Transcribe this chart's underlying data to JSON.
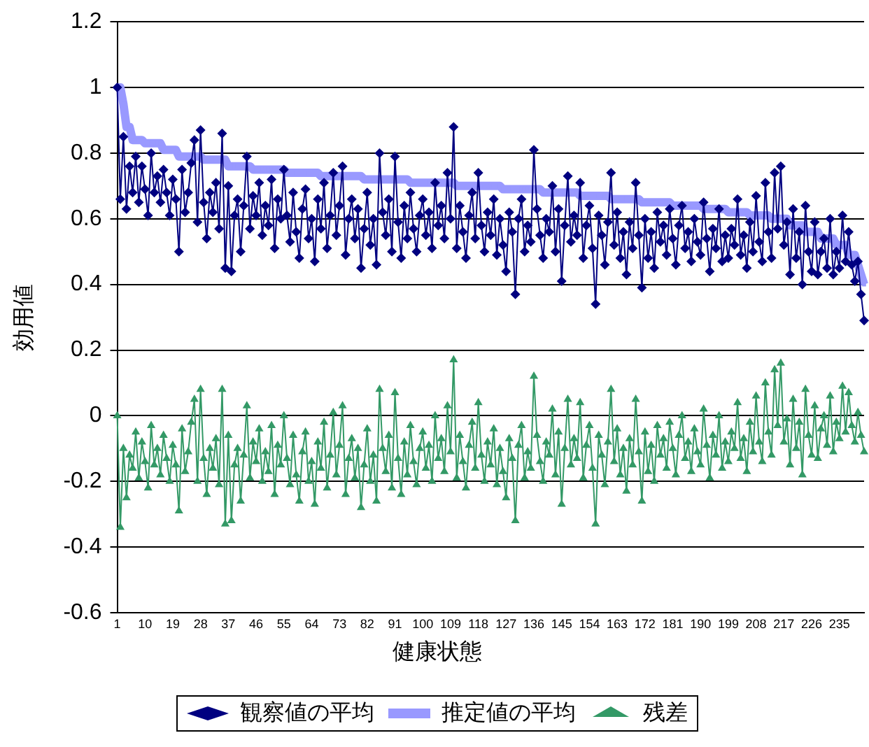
{
  "chart_data": {
    "type": "line",
    "xlabel": "健康状態",
    "ylabel": "効用値",
    "categories": [
      "1",
      null,
      null,
      null,
      null,
      null,
      null,
      null,
      null,
      "10",
      null,
      null,
      null,
      null,
      null,
      null,
      null,
      null,
      "19",
      null,
      null,
      null,
      null,
      null,
      null,
      null,
      null,
      "28",
      null,
      null,
      null,
      null,
      null,
      null,
      null,
      null,
      "37",
      null,
      null,
      null,
      null,
      null,
      null,
      null,
      null,
      "46",
      null,
      null,
      null,
      null,
      null,
      null,
      null,
      null,
      "55",
      null,
      null,
      null,
      null,
      null,
      null,
      null,
      null,
      "64",
      null,
      null,
      null,
      null,
      null,
      null,
      null,
      null,
      "73",
      null,
      null,
      null,
      null,
      null,
      null,
      null,
      null,
      "82",
      null,
      null,
      null,
      null,
      null,
      null,
      null,
      null,
      "91",
      null,
      null,
      null,
      null,
      null,
      null,
      null,
      null,
      "100",
      null,
      null,
      null,
      null,
      null,
      null,
      null,
      null,
      "109",
      null,
      null,
      null,
      null,
      null,
      null,
      null,
      null,
      "118",
      null,
      null,
      null,
      null,
      null,
      null,
      null,
      null,
      "127",
      null,
      null,
      null,
      null,
      null,
      null,
      null,
      null,
      "136",
      null,
      null,
      null,
      null,
      null,
      null,
      null,
      null,
      "145",
      null,
      null,
      null,
      null,
      null,
      null,
      null,
      null,
      "154",
      null,
      null,
      null,
      null,
      null,
      null,
      null,
      null,
      "163",
      null,
      null,
      null,
      null,
      null,
      null,
      null,
      null,
      "172",
      null,
      null,
      null,
      null,
      null,
      null,
      null,
      null,
      "181",
      null,
      null,
      null,
      null,
      null,
      null,
      null,
      null,
      "190",
      null,
      null,
      null,
      null,
      null,
      null,
      null,
      null,
      "199",
      null,
      null,
      null,
      null,
      null,
      null,
      null,
      null,
      "208",
      null,
      null,
      null,
      null,
      null,
      null,
      null,
      null,
      "217",
      null,
      null,
      null,
      null,
      null,
      null,
      null,
      null,
      "226",
      null,
      null,
      null,
      null,
      null,
      null,
      null,
      null,
      "235",
      null,
      null,
      null,
      null,
      null,
      null,
      null,
      null
    ],
    "series": [
      {
        "name": "観察値の平均",
        "color": "#000080",
        "marker": "diamond",
        "values": [
          1.0,
          0.66,
          0.85,
          0.63,
          0.76,
          0.68,
          0.79,
          0.65,
          0.76,
          0.69,
          0.61,
          0.8,
          0.68,
          0.73,
          0.65,
          0.75,
          0.68,
          0.61,
          0.72,
          0.66,
          0.5,
          0.75,
          0.62,
          0.68,
          0.77,
          0.84,
          0.59,
          0.87,
          0.65,
          0.54,
          0.68,
          0.62,
          0.71,
          0.57,
          0.86,
          0.45,
          0.7,
          0.44,
          0.61,
          0.66,
          0.5,
          0.64,
          0.79,
          0.57,
          0.67,
          0.61,
          0.71,
          0.55,
          0.64,
          0.58,
          0.72,
          0.51,
          0.66,
          0.6,
          0.75,
          0.61,
          0.53,
          0.68,
          0.56,
          0.48,
          0.63,
          0.69,
          0.54,
          0.6,
          0.47,
          0.66,
          0.57,
          0.71,
          0.51,
          0.61,
          0.74,
          0.55,
          0.64,
          0.76,
          0.49,
          0.6,
          0.66,
          0.54,
          0.63,
          0.45,
          0.57,
          0.68,
          0.52,
          0.6,
          0.46,
          0.8,
          0.62,
          0.55,
          0.66,
          0.5,
          0.79,
          0.59,
          0.48,
          0.64,
          0.54,
          0.68,
          0.57,
          0.5,
          0.61,
          0.66,
          0.55,
          0.62,
          0.51,
          0.71,
          0.58,
          0.64,
          0.54,
          0.74,
          0.6,
          0.88,
          0.51,
          0.64,
          0.56,
          0.48,
          0.61,
          0.68,
          0.54,
          0.74,
          0.58,
          0.5,
          0.62,
          0.55,
          0.66,
          0.49,
          0.6,
          0.52,
          0.44,
          0.62,
          0.56,
          0.37,
          0.6,
          0.66,
          0.5,
          0.58,
          0.53,
          0.81,
          0.63,
          0.55,
          0.48,
          0.6,
          0.56,
          0.7,
          0.5,
          0.63,
          0.41,
          0.58,
          0.73,
          0.53,
          0.61,
          0.55,
          0.71,
          0.48,
          0.58,
          0.64,
          0.51,
          0.34,
          0.61,
          0.55,
          0.46,
          0.59,
          0.74,
          0.52,
          0.62,
          0.48,
          0.56,
          0.43,
          0.59,
          0.51,
          0.71,
          0.55,
          0.39,
          0.6,
          0.48,
          0.56,
          0.45,
          0.62,
          0.53,
          0.58,
          0.49,
          0.63,
          0.54,
          0.46,
          0.58,
          0.64,
          0.51,
          0.56,
          0.47,
          0.6,
          0.53,
          0.49,
          0.65,
          0.54,
          0.44,
          0.57,
          0.51,
          0.63,
          0.47,
          0.55,
          0.48,
          0.57,
          0.52,
          0.66,
          0.49,
          0.55,
          0.45,
          0.59,
          0.5,
          0.67,
          0.53,
          0.47,
          0.71,
          0.56,
          0.48,
          0.74,
          0.57,
          0.76,
          0.52,
          0.59,
          0.43,
          0.63,
          0.48,
          0.56,
          0.4,
          0.64,
          0.5,
          0.44,
          0.59,
          0.43,
          0.5,
          0.54,
          0.45,
          0.6,
          0.43,
          0.5,
          0.45,
          0.61,
          0.47,
          0.56,
          0.46,
          0.41,
          0.47,
          0.37,
          0.29
        ]
      },
      {
        "name": "推定値の平均",
        "color": "#9999ff",
        "marker": "square",
        "values": [
          1.0,
          1.0,
          0.95,
          0.88,
          0.88,
          0.84,
          0.84,
          0.84,
          0.84,
          0.83,
          0.83,
          0.83,
          0.83,
          0.83,
          0.83,
          0.81,
          0.81,
          0.81,
          0.81,
          0.81,
          0.79,
          0.79,
          0.79,
          0.79,
          0.79,
          0.79,
          0.79,
          0.79,
          0.78,
          0.78,
          0.78,
          0.78,
          0.78,
          0.78,
          0.78,
          0.78,
          0.76,
          0.76,
          0.76,
          0.76,
          0.76,
          0.76,
          0.76,
          0.76,
          0.75,
          0.75,
          0.75,
          0.75,
          0.75,
          0.75,
          0.75,
          0.75,
          0.75,
          0.75,
          0.75,
          0.74,
          0.74,
          0.74,
          0.74,
          0.74,
          0.74,
          0.74,
          0.74,
          0.74,
          0.74,
          0.74,
          0.73,
          0.73,
          0.73,
          0.73,
          0.73,
          0.73,
          0.73,
          0.73,
          0.73,
          0.73,
          0.73,
          0.73,
          0.73,
          0.73,
          0.72,
          0.72,
          0.72,
          0.72,
          0.72,
          0.72,
          0.72,
          0.72,
          0.72,
          0.72,
          0.72,
          0.72,
          0.72,
          0.72,
          0.72,
          0.71,
          0.71,
          0.71,
          0.71,
          0.71,
          0.71,
          0.71,
          0.71,
          0.71,
          0.71,
          0.71,
          0.71,
          0.71,
          0.71,
          0.71,
          0.7,
          0.7,
          0.7,
          0.7,
          0.7,
          0.7,
          0.7,
          0.7,
          0.7,
          0.7,
          0.7,
          0.7,
          0.7,
          0.7,
          0.7,
          0.69,
          0.69,
          0.69,
          0.69,
          0.69,
          0.69,
          0.69,
          0.69,
          0.69,
          0.69,
          0.69,
          0.69,
          0.69,
          0.68,
          0.68,
          0.68,
          0.68,
          0.68,
          0.68,
          0.68,
          0.68,
          0.68,
          0.68,
          0.68,
          0.68,
          0.67,
          0.67,
          0.67,
          0.67,
          0.67,
          0.67,
          0.67,
          0.67,
          0.67,
          0.67,
          0.66,
          0.66,
          0.66,
          0.66,
          0.66,
          0.66,
          0.66,
          0.66,
          0.66,
          0.66,
          0.65,
          0.65,
          0.65,
          0.65,
          0.65,
          0.65,
          0.65,
          0.65,
          0.65,
          0.65,
          0.64,
          0.64,
          0.64,
          0.64,
          0.64,
          0.64,
          0.64,
          0.64,
          0.64,
          0.64,
          0.63,
          0.63,
          0.63,
          0.63,
          0.63,
          0.63,
          0.63,
          0.63,
          0.62,
          0.62,
          0.62,
          0.62,
          0.62,
          0.62,
          0.62,
          0.61,
          0.61,
          0.61,
          0.61,
          0.61,
          0.61,
          0.61,
          0.6,
          0.6,
          0.6,
          0.6,
          0.6,
          0.6,
          0.58,
          0.58,
          0.58,
          0.58,
          0.58,
          0.56,
          0.56,
          0.56,
          0.56,
          0.56,
          0.54,
          0.54,
          0.54,
          0.54,
          0.54,
          0.52,
          0.52,
          0.52,
          0.52,
          0.49,
          0.49,
          0.49,
          0.46,
          0.43,
          0.4
        ]
      },
      {
        "name": "残差",
        "color": "#339966",
        "marker": "triangle",
        "values": [
          0,
          -0.34,
          -0.1,
          -0.25,
          -0.12,
          -0.16,
          -0.05,
          -0.19,
          -0.08,
          -0.14,
          -0.22,
          -0.03,
          -0.15,
          -0.1,
          -0.18,
          -0.06,
          -0.13,
          -0.2,
          -0.09,
          -0.15,
          -0.29,
          -0.04,
          -0.17,
          -0.11,
          -0.02,
          0.05,
          -0.2,
          0.08,
          -0.13,
          -0.24,
          -0.1,
          -0.16,
          -0.07,
          -0.21,
          0.08,
          -0.33,
          -0.06,
          -0.32,
          -0.15,
          -0.1,
          -0.26,
          -0.12,
          0.03,
          -0.19,
          -0.08,
          -0.14,
          -0.04,
          -0.2,
          -0.11,
          -0.17,
          -0.03,
          -0.24,
          -0.09,
          -0.15,
          0,
          -0.13,
          -0.21,
          -0.06,
          -0.18,
          -0.26,
          -0.11,
          -0.05,
          -0.2,
          -0.14,
          -0.27,
          -0.08,
          -0.16,
          -0.02,
          -0.22,
          -0.12,
          0.01,
          -0.18,
          -0.09,
          0.03,
          -0.24,
          -0.13,
          -0.07,
          -0.19,
          -0.1,
          -0.28,
          -0.15,
          -0.04,
          -0.2,
          -0.12,
          -0.26,
          0.08,
          -0.1,
          -0.17,
          -0.06,
          -0.22,
          0.07,
          -0.13,
          -0.24,
          -0.08,
          -0.18,
          -0.03,
          -0.14,
          -0.21,
          -0.1,
          -0.05,
          -0.16,
          -0.09,
          -0.2,
          0,
          -0.13,
          -0.07,
          -0.17,
          0.03,
          -0.11,
          0.17,
          -0.19,
          -0.06,
          -0.14,
          -0.22,
          -0.09,
          -0.02,
          -0.16,
          0.04,
          -0.12,
          -0.2,
          -0.08,
          -0.15,
          -0.04,
          -0.21,
          -0.1,
          -0.17,
          -0.25,
          -0.07,
          -0.13,
          -0.32,
          -0.09,
          -0.03,
          -0.19,
          -0.11,
          -0.16,
          0.12,
          -0.06,
          -0.14,
          -0.2,
          -0.08,
          -0.12,
          0.02,
          -0.18,
          -0.05,
          -0.27,
          -0.1,
          0.05,
          -0.15,
          -0.07,
          -0.13,
          0.04,
          -0.19,
          -0.09,
          -0.03,
          -0.16,
          -0.33,
          -0.06,
          -0.12,
          -0.21,
          -0.08,
          0.08,
          -0.14,
          -0.04,
          -0.18,
          -0.1,
          -0.23,
          -0.07,
          -0.15,
          0.05,
          -0.11,
          -0.26,
          -0.05,
          -0.17,
          -0.09,
          -0.2,
          -0.03,
          -0.12,
          -0.07,
          -0.16,
          -0.02,
          -0.1,
          -0.18,
          -0.06,
          0,
          -0.13,
          -0.08,
          -0.17,
          -0.04,
          -0.11,
          -0.15,
          0.02,
          -0.09,
          -0.19,
          -0.06,
          -0.12,
          0,
          -0.16,
          -0.08,
          -0.14,
          -0.05,
          -0.1,
          0.04,
          -0.13,
          -0.07,
          -0.17,
          -0.02,
          -0.11,
          0.06,
          -0.08,
          -0.14,
          0.1,
          -0.05,
          -0.12,
          0.14,
          -0.03,
          0.16,
          -0.08,
          -0.01,
          -0.15,
          0.05,
          -0.1,
          -0.02,
          -0.18,
          0.08,
          -0.06,
          -0.12,
          0.03,
          -0.13,
          -0.04,
          0,
          -0.09,
          0.06,
          -0.11,
          -0.02,
          -0.07,
          0.09,
          -0.05,
          0.07,
          -0.03,
          -0.08,
          0.01,
          -0.06,
          -0.11
        ]
      }
    ],
    "ylim": [
      -0.6,
      1.2
    ],
    "yticks": [
      -0.6,
      -0.4,
      -0.2,
      0,
      0.2,
      0.4,
      0.6,
      0.8,
      1,
      1.2
    ],
    "grid": "y",
    "legend": "bottom"
  }
}
